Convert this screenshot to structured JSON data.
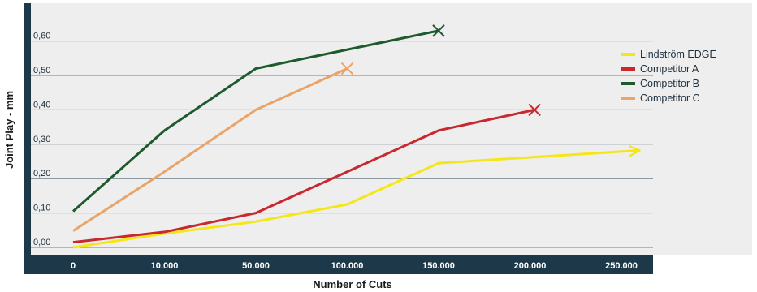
{
  "chart_data": {
    "type": "line",
    "title": "",
    "xlabel": "Number of Cuts",
    "ylabel": "Joint Play - mm",
    "categories": [
      "0",
      "10.000",
      "50.000",
      "100.000",
      "150.000",
      "200.000",
      "250.000"
    ],
    "y_ticks": [
      "0,00",
      "0,10",
      "0,20",
      "0,30",
      "0,40",
      "0,50",
      "0,60"
    ],
    "ylim": [
      0,
      0.7
    ],
    "grid": true,
    "legend_position": "top-right",
    "series": [
      {
        "name": "Lindström EDGE",
        "color": "#f5e619",
        "end_marker": "arrow",
        "points": [
          [
            0,
            0.0
          ],
          [
            1,
            0.04
          ],
          [
            2,
            0.075
          ],
          [
            3,
            0.125
          ],
          [
            4,
            0.245
          ],
          [
            6.2,
            0.282
          ]
        ]
      },
      {
        "name": "Competitor A",
        "color": "#c8282e",
        "end_marker": "x",
        "points": [
          [
            0,
            0.015
          ],
          [
            1,
            0.045
          ],
          [
            2,
            0.1
          ],
          [
            3,
            0.22
          ],
          [
            4,
            0.34
          ],
          [
            5.05,
            0.4
          ]
        ]
      },
      {
        "name": "Competitor B",
        "color": "#1e5b2c",
        "end_marker": "x",
        "points": [
          [
            0,
            0.105
          ],
          [
            1,
            0.34
          ],
          [
            2,
            0.52
          ],
          [
            4,
            0.63
          ]
        ]
      },
      {
        "name": "Competitor C",
        "color": "#eba468",
        "end_marker": "x",
        "points": [
          [
            0,
            0.048
          ],
          [
            1,
            0.22
          ],
          [
            2,
            0.4
          ],
          [
            3,
            0.52
          ]
        ]
      }
    ]
  }
}
